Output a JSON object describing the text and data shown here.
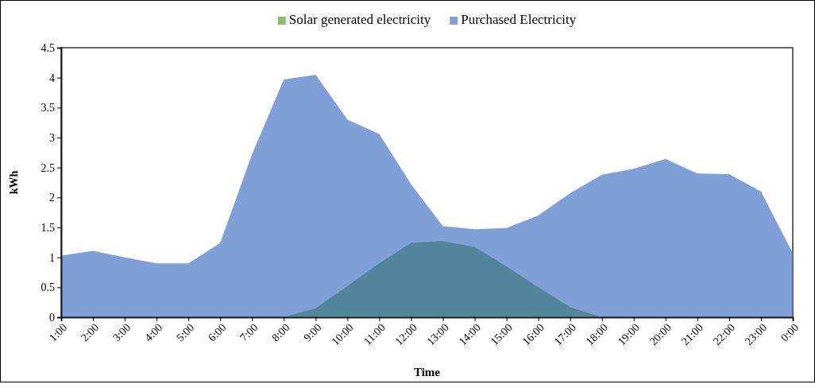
{
  "chart_data": {
    "type": "area",
    "xlabel": "Time",
    "ylabel": "kWh",
    "categories": [
      "1:00",
      "2:00",
      "3:00",
      "4:00",
      "5:00",
      "6:00",
      "7:00",
      "8:00",
      "9:00",
      "10:00",
      "11:00",
      "12:00",
      "13:00",
      "14:00",
      "15:00",
      "16:00",
      "17:00",
      "18:00",
      "19:00",
      "20:00",
      "21:00",
      "22:00",
      "23:00",
      "0:00"
    ],
    "series": [
      {
        "name": "Solar generated electricity",
        "color": "#70ad47",
        "values": [
          0,
          0,
          0,
          0,
          0,
          0,
          0,
          0,
          0.15,
          0.52,
          0.9,
          1.24,
          1.27,
          1.17,
          0.85,
          0.5,
          0.17,
          0,
          0,
          0,
          0,
          0,
          0,
          0
        ]
      },
      {
        "name": "Purchased Electricity",
        "color": "#4472c4",
        "values": [
          1.03,
          1.11,
          1.0,
          0.9,
          0.9,
          1.24,
          2.72,
          3.97,
          4.05,
          3.3,
          3.06,
          2.22,
          1.52,
          1.47,
          1.49,
          1.7,
          2.07,
          2.38,
          2.48,
          2.64,
          2.4,
          2.39,
          2.1,
          1.07
        ]
      }
    ],
    "ylim": [
      0,
      4.5
    ],
    "yticks": [
      0,
      0.5,
      1,
      1.5,
      2,
      2.5,
      3,
      3.5,
      4,
      4.5
    ],
    "legend": "top",
    "grid": false
  }
}
